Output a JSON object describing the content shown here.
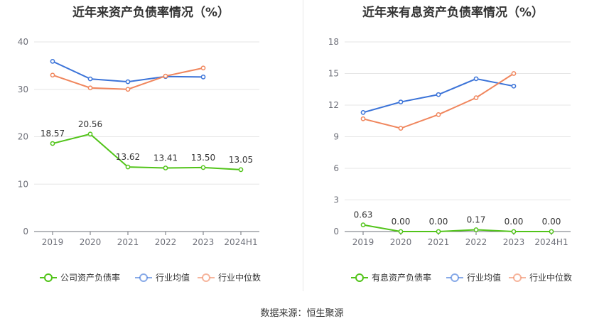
{
  "footer": {
    "source": "数据来源：恒生聚源"
  },
  "chart_data": [
    {
      "type": "line",
      "title": "近年来资产负债率情况（%）",
      "categories": [
        "2019",
        "2020",
        "2021",
        "2022",
        "2023",
        "2024H1"
      ],
      "ylim": [
        0,
        40
      ],
      "yticks": [
        0,
        10,
        20,
        30,
        40
      ],
      "grid": true,
      "legend_position": "bottom",
      "series": [
        {
          "name": "公司资产负债率",
          "color": "#52c41a",
          "values": [
            18.57,
            20.56,
            13.62,
            13.41,
            13.5,
            13.05
          ],
          "labels": [
            "18.57",
            "20.56",
            "13.62",
            "13.41",
            "13.50",
            "13.05"
          ]
        },
        {
          "name": "行业均值",
          "color": "#3b73d8",
          "values": [
            35.9,
            32.2,
            31.6,
            32.7,
            32.6,
            null
          ]
        },
        {
          "name": "行业中位数",
          "color": "#f0865d",
          "values": [
            33.0,
            30.3,
            30.0,
            32.8,
            34.5,
            null
          ]
        }
      ]
    },
    {
      "type": "line",
      "title": "近年来有息资产负债率情况（%）",
      "categories": [
        "2019",
        "2020",
        "2021",
        "2022",
        "2023",
        "2024H1"
      ],
      "ylim": [
        0,
        18
      ],
      "yticks": [
        0,
        3,
        6,
        9,
        12,
        15,
        18
      ],
      "grid": true,
      "legend_position": "bottom",
      "series": [
        {
          "name": "有息资产负债率",
          "color": "#52c41a",
          "values": [
            0.63,
            0.0,
            0.0,
            0.17,
            0.0,
            0.0
          ],
          "labels": [
            "0.63",
            "0.00",
            "0.00",
            "0.17",
            "0.00",
            "0.00"
          ]
        },
        {
          "name": "行业均值",
          "color": "#3b73d8",
          "values": [
            11.3,
            12.3,
            13.0,
            14.5,
            13.8,
            null
          ]
        },
        {
          "name": "行业中位数",
          "color": "#f0865d",
          "values": [
            10.7,
            9.8,
            11.1,
            12.7,
            15.0,
            null
          ]
        }
      ]
    }
  ]
}
